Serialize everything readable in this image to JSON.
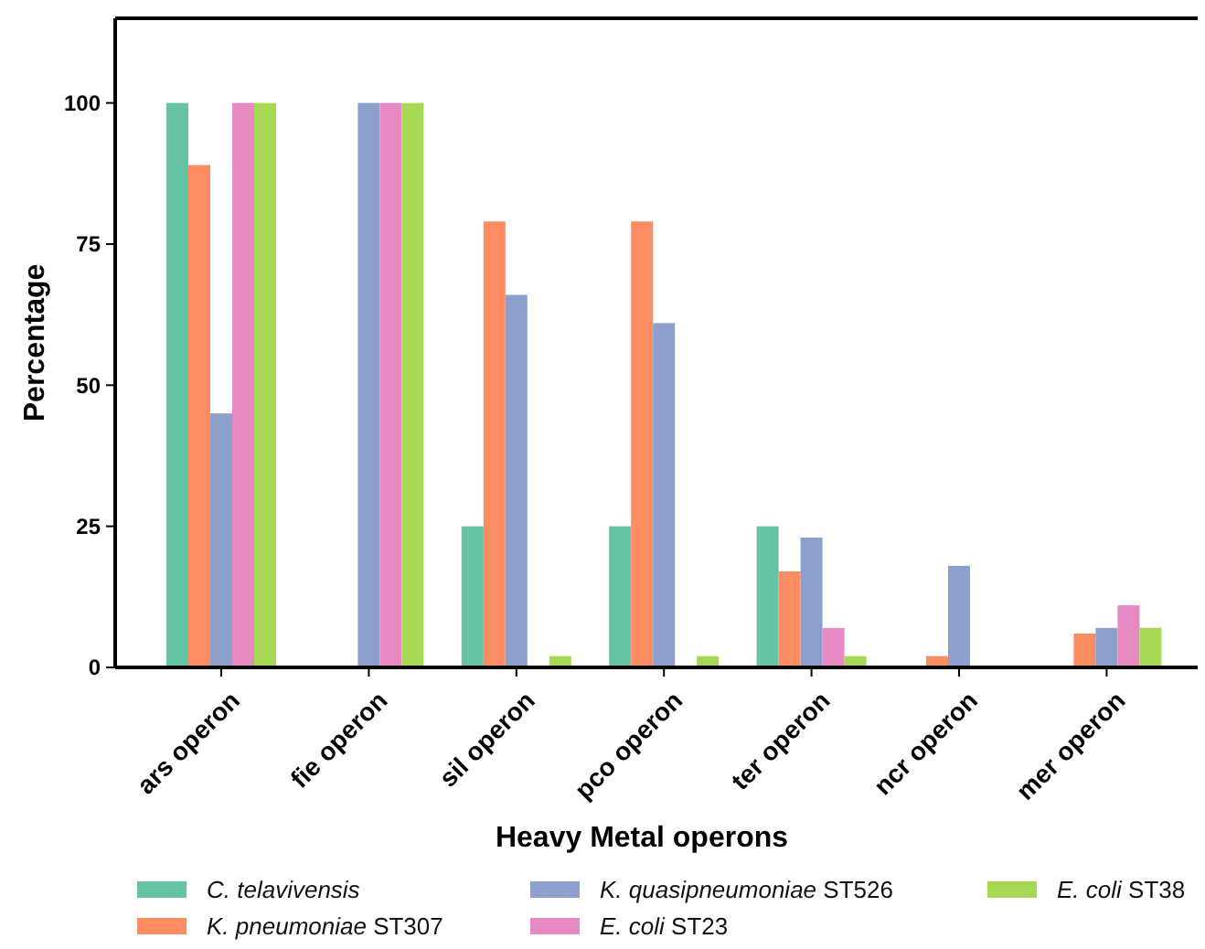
{
  "chart_data": {
    "type": "bar",
    "xlabel": "Heavy Metal operons",
    "ylabel": "Percentage",
    "categories": [
      "ars operon",
      "fie operon",
      "sil operon",
      "pco operon",
      "ter operon",
      "ncr operon",
      "mer operon"
    ],
    "series": [
      {
        "name": "C. telavivensis",
        "color": "#66c2a5",
        "values": [
          100,
          0,
          25,
          25,
          25,
          0,
          0
        ]
      },
      {
        "name": "K. pneumoniae ST307",
        "color": "#fc8d62",
        "values": [
          89,
          0,
          79,
          79,
          17,
          2,
          6
        ]
      },
      {
        "name": "K. quasipneumoniae ST526",
        "color": "#8da0cb",
        "values": [
          45,
          100,
          66,
          61,
          23,
          18,
          7
        ]
      },
      {
        "name": "E. coli ST23",
        "color": "#e78ac3",
        "values": [
          100,
          100,
          0,
          0,
          7,
          0,
          11
        ]
      },
      {
        "name": "E. coli ST38",
        "color": "#a6d854",
        "values": [
          100,
          100,
          2,
          2,
          2,
          0,
          7
        ]
      }
    ],
    "ylim": [
      0,
      115
    ],
    "yticks": [
      0,
      25,
      50,
      75,
      100
    ],
    "grid": false,
    "legend": "bottom"
  }
}
